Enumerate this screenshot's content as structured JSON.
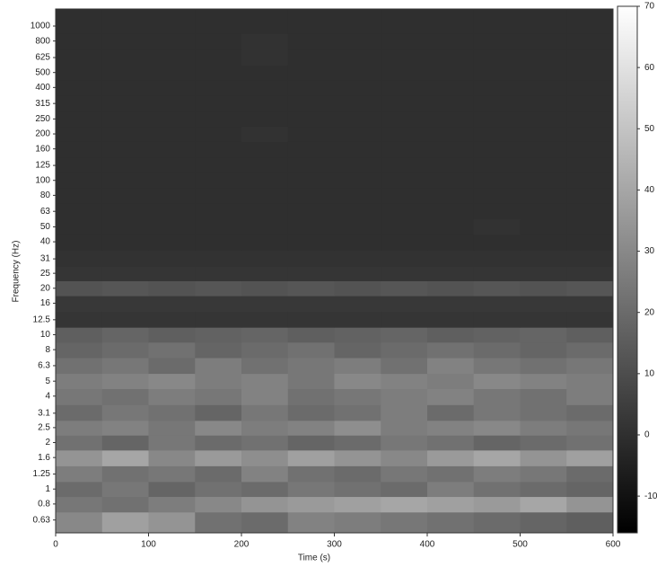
{
  "chart_data": {
    "type": "heatmap",
    "log_y": true,
    "colormap": "gray",
    "xlabel": "Time (s)",
    "ylabel": "Frequency (Hz)",
    "xlim": [
      0,
      600
    ],
    "xticks": [
      0,
      100,
      200,
      300,
      400,
      500,
      600
    ],
    "ylim": [
      0.52,
      1290
    ],
    "yticks": [
      0.63,
      0.8,
      1,
      1.25,
      1.6,
      2,
      2.5,
      3.1,
      4,
      5,
      6.3,
      8,
      10,
      12.5,
      16,
      20,
      25,
      31,
      40,
      50,
      63,
      80,
      100,
      125,
      160,
      200,
      250,
      315,
      400,
      500,
      625,
      800,
      1000
    ],
    "zlim": [
      -16,
      70
    ],
    "zticks": [
      70,
      60,
      50,
      40,
      30,
      20,
      10,
      0,
      -10
    ],
    "x": [
      25,
      75,
      125,
      175,
      225,
      275,
      325,
      375,
      425,
      475,
      525,
      575
    ],
    "y": [
      0.63,
      0.8,
      1,
      1.25,
      1.6,
      2,
      2.5,
      3.1,
      4,
      5,
      6.3,
      8,
      10,
      12.5,
      16,
      20,
      25,
      31,
      40,
      50,
      63,
      80,
      100,
      125,
      160,
      200,
      250,
      315,
      400,
      500,
      625,
      800,
      1000
    ],
    "z": [
      [
        30,
        38,
        34,
        22,
        20,
        28,
        26,
        24,
        22,
        20,
        18,
        16
      ],
      [
        24,
        22,
        26,
        30,
        34,
        36,
        38,
        40,
        38,
        36,
        40,
        34
      ],
      [
        20,
        24,
        18,
        22,
        20,
        24,
        22,
        20,
        26,
        22,
        20,
        18
      ],
      [
        26,
        22,
        24,
        20,
        28,
        22,
        20,
        24,
        22,
        26,
        24,
        20
      ],
      [
        34,
        40,
        30,
        36,
        32,
        38,
        34,
        30,
        36,
        40,
        34,
        38
      ],
      [
        22,
        18,
        24,
        20,
        22,
        18,
        20,
        24,
        22,
        18,
        20,
        22
      ],
      [
        26,
        28,
        24,
        30,
        26,
        28,
        32,
        26,
        28,
        30,
        26,
        24
      ],
      [
        20,
        24,
        22,
        18,
        24,
        20,
        22,
        26,
        20,
        24,
        22,
        20
      ],
      [
        24,
        22,
        26,
        24,
        28,
        22,
        24,
        26,
        28,
        24,
        22,
        26
      ],
      [
        26,
        28,
        30,
        26,
        28,
        24,
        30,
        28,
        26,
        30,
        28,
        26
      ],
      [
        22,
        24,
        20,
        26,
        22,
        24,
        26,
        22,
        28,
        24,
        22,
        24
      ],
      [
        18,
        20,
        22,
        18,
        20,
        22,
        18,
        20,
        22,
        20,
        18,
        20
      ],
      [
        16,
        18,
        16,
        17,
        18,
        16,
        17,
        18,
        16,
        17,
        18,
        16
      ],
      [
        2,
        2,
        2,
        2,
        2,
        2,
        2,
        2,
        2,
        2,
        2,
        2
      ],
      [
        3,
        3,
        3,
        3,
        3,
        3,
        3,
        3,
        3,
        3,
        3,
        3
      ],
      [
        12,
        13,
        12,
        13,
        12,
        13,
        12,
        13,
        12,
        13,
        12,
        13
      ],
      [
        2,
        2,
        2,
        2,
        2,
        2,
        2,
        2,
        2,
        2,
        2,
        2
      ],
      [
        1,
        1,
        1,
        1,
        1,
        1,
        1,
        1,
        1,
        1,
        1,
        1
      ],
      [
        0,
        0,
        0,
        0,
        0,
        0,
        0,
        0,
        0,
        0,
        0,
        0
      ],
      [
        0,
        0,
        0,
        0,
        0,
        0,
        0,
        0,
        0,
        1,
        0,
        0
      ],
      [
        0,
        0,
        0,
        0,
        0,
        0,
        0,
        0,
        0,
        0,
        0,
        0
      ],
      [
        0,
        0,
        0,
        0,
        0,
        0,
        0,
        0,
        0,
        0,
        0,
        0
      ],
      [
        0,
        0,
        0,
        0,
        0,
        0,
        0,
        0,
        0,
        0,
        0,
        0
      ],
      [
        0,
        0,
        0,
        0,
        0,
        0,
        0,
        0,
        0,
        0,
        0,
        0
      ],
      [
        0,
        0,
        0,
        0,
        0,
        0,
        0,
        0,
        0,
        0,
        0,
        0
      ],
      [
        0,
        0,
        0,
        0,
        1,
        0,
        0,
        0,
        0,
        0,
        0,
        0
      ],
      [
        0,
        0,
        0,
        0,
        0,
        0,
        0,
        0,
        0,
        0,
        0,
        0
      ],
      [
        0,
        0,
        0,
        0,
        0,
        0,
        0,
        0,
        0,
        0,
        0,
        0
      ],
      [
        0,
        0,
        0,
        0,
        0,
        0,
        0,
        0,
        0,
        0,
        0,
        0
      ],
      [
        0,
        0,
        0,
        0,
        0,
        0,
        0,
        0,
        0,
        0,
        0,
        0
      ],
      [
        0,
        0,
        0,
        0,
        1,
        0,
        0,
        0,
        0,
        0,
        0,
        0
      ],
      [
        0,
        0,
        0,
        0,
        1,
        0,
        0,
        0,
        0,
        0,
        0,
        0
      ],
      [
        0,
        0,
        0,
        0,
        0,
        0,
        0,
        0,
        0,
        0,
        0,
        0
      ]
    ]
  }
}
